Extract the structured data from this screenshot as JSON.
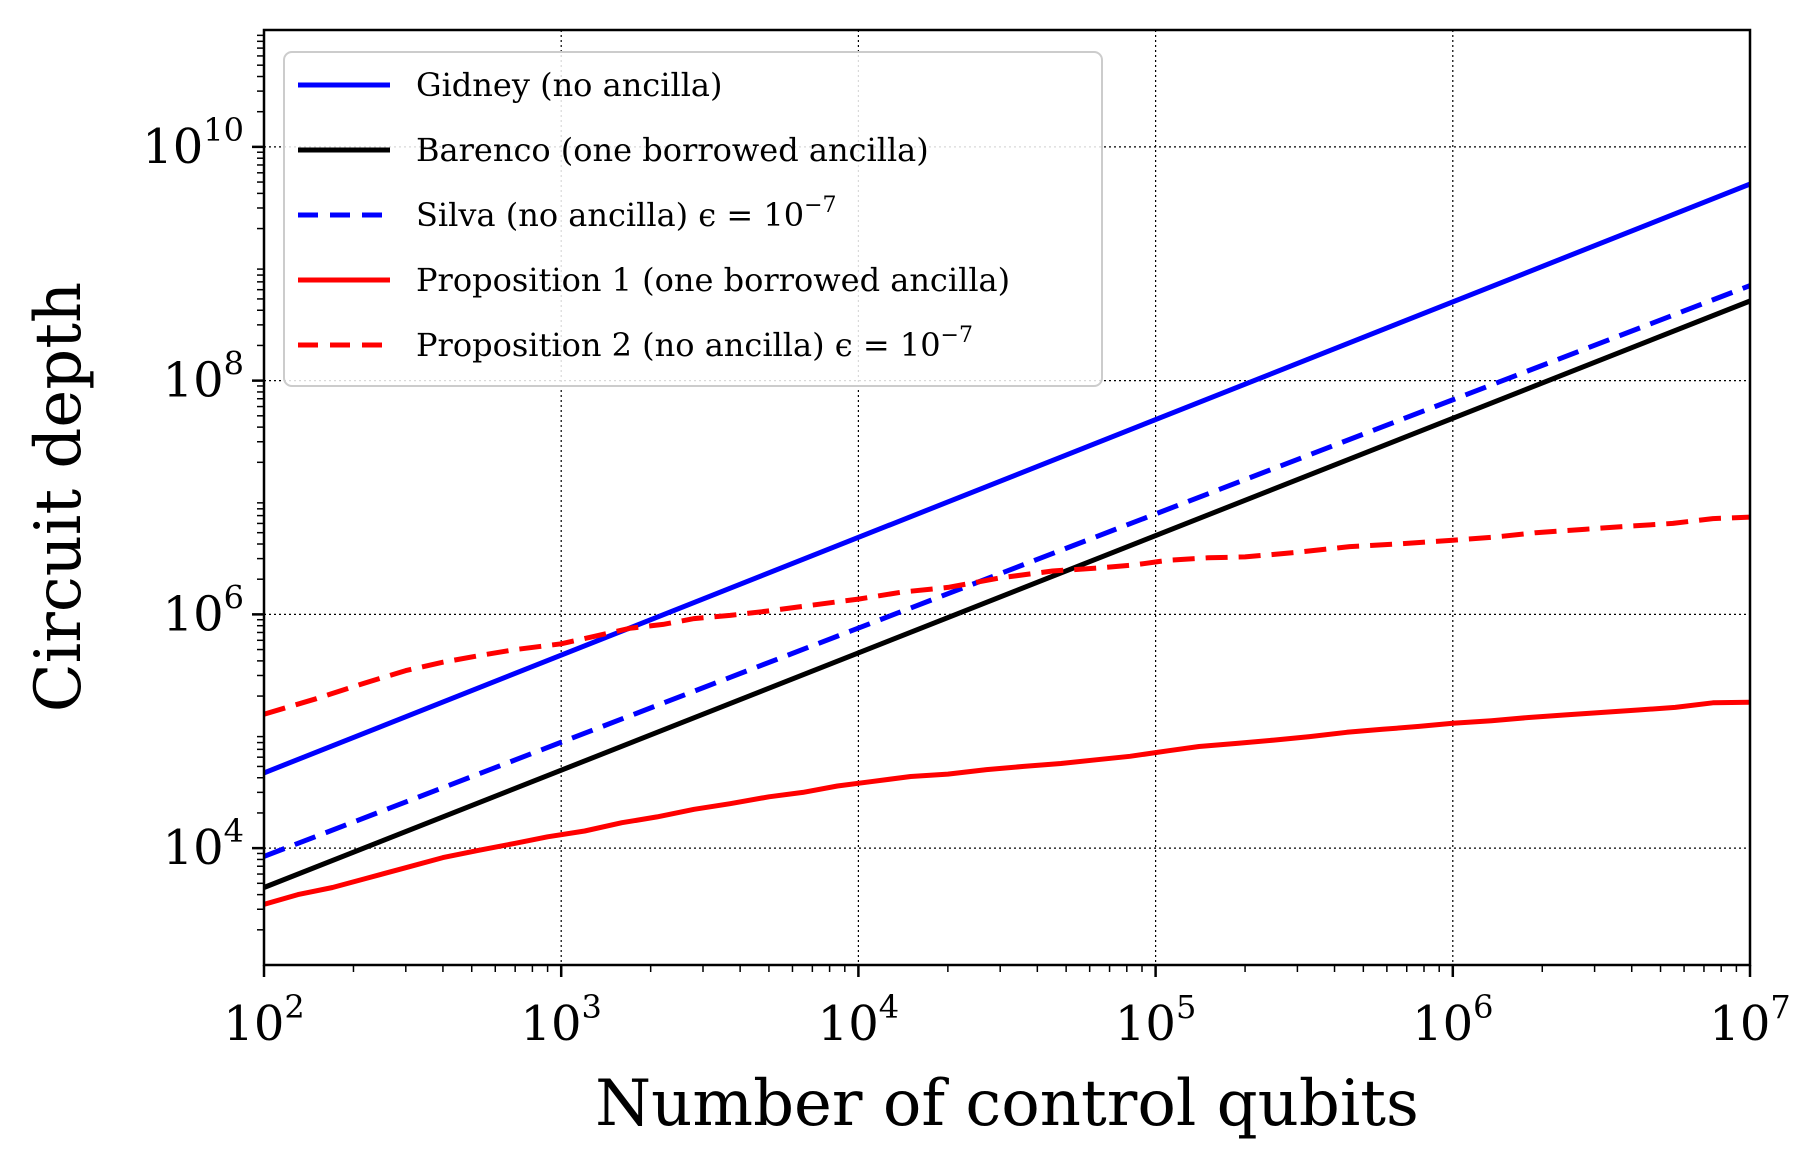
{
  "chart_data": {
    "type": "line",
    "title": "",
    "xlabel": "Number of control qubits",
    "ylabel": "Circuit depth",
    "xscale": "log",
    "yscale": "log",
    "xlim": [
      100,
      10000000
    ],
    "ylim": [
      1000,
      100000000000
    ],
    "grid": true,
    "legend_position": "top-left",
    "x_ticks": [
      {
        "base": "10",
        "exp": "2",
        "value": 100
      },
      {
        "base": "10",
        "exp": "3",
        "value": 1000
      },
      {
        "base": "10",
        "exp": "4",
        "value": 10000
      },
      {
        "base": "10",
        "exp": "5",
        "value": 100000
      },
      {
        "base": "10",
        "exp": "6",
        "value": 1000000
      },
      {
        "base": "10",
        "exp": "7",
        "value": 10000000
      }
    ],
    "y_ticks": [
      {
        "base": "10",
        "exp": "4",
        "value": 10000
      },
      {
        "base": "10",
        "exp": "6",
        "value": 1000000
      },
      {
        "base": "10",
        "exp": "8",
        "value": 100000000
      },
      {
        "base": "10",
        "exp": "10",
        "value": 10000000000
      }
    ],
    "series": [
      {
        "name": "Gidney (no ancilla)",
        "color": "#0000ff",
        "dash": "solid",
        "x": [
          100,
          10000000
        ],
        "y": [
          44000,
          4800000000
        ]
      },
      {
        "name": "Barenco (one borrowed ancilla)",
        "color": "#000000",
        "dash": "solid",
        "x": [
          100,
          10000000
        ],
        "y": [
          4600,
          480000000
        ]
      },
      {
        "name": "Silva (no ancilla)",
        "name_math": "ϵ = 10",
        "name_sup": "−7",
        "color": "#0000ff",
        "dash": "dashed",
        "x": [
          100,
          10000000
        ],
        "y": [
          8500,
          650000000
        ]
      },
      {
        "name": "Proposition 1 (one borrowed ancilla)",
        "color": "#ff0000",
        "dash": "solid",
        "x": [
          100,
          130,
          170,
          220,
          300,
          400,
          520,
          700,
          900,
          1200,
          1600,
          2100,
          2800,
          3700,
          5000,
          6500,
          8500,
          11000,
          15000,
          20000,
          27000,
          36000,
          48000,
          63000,
          82000,
          110000,
          140000,
          190000,
          250000,
          330000,
          440000,
          580000,
          770000,
          1000000,
          1350000,
          1800000,
          2400000,
          3200000,
          4200000,
          5600000,
          7500000,
          10000000
        ],
        "y": [
          3300,
          4000,
          4600,
          5500,
          6800,
          8300,
          9500,
          11000,
          12500,
          14000,
          16500,
          18500,
          21500,
          24000,
          27500,
          30000,
          34000,
          37000,
          41000,
          43000,
          47000,
          50000,
          53000,
          57000,
          61000,
          68000,
          74000,
          79000,
          84000,
          90000,
          98000,
          104000,
          110000,
          117000,
          123000,
          131000,
          138000,
          145000,
          152000,
          160000,
          175000,
          177000
        ]
      },
      {
        "name": "Proposition 2 (no ancilla)",
        "name_math": "ϵ = 10",
        "name_sup": "−7",
        "color": "#ff0000",
        "dash": "dashed",
        "x": [
          100,
          150,
          220,
          300,
          400,
          520,
          700,
          1000,
          1300,
          1700,
          2200,
          2800,
          3700,
          5000,
          7000,
          10000,
          14000,
          20000,
          30000,
          45000,
          65000,
          85000,
          110000,
          150000,
          200000,
          300000,
          450000,
          650000,
          1000000,
          1400000,
          1900000,
          2800000,
          4000000,
          5500000,
          7500000,
          10000000
        ],
        "y": [
          140000,
          190000,
          260000,
          330000,
          390000,
          440000,
          500000,
          560000,
          650000,
          760000,
          820000,
          920000,
          980000,
          1070000,
          1200000,
          1350000,
          1550000,
          1700000,
          2050000,
          2350000,
          2500000,
          2650000,
          2900000,
          3050000,
          3100000,
          3400000,
          3800000,
          4000000,
          4300000,
          4600000,
          5000000,
          5350000,
          5700000,
          6000000,
          6600000,
          6800000
        ]
      }
    ]
  }
}
